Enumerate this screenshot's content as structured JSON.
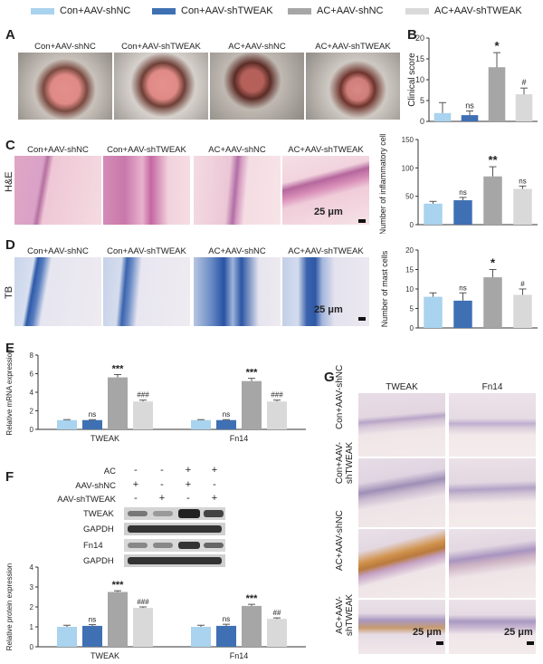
{
  "legend": {
    "items": [
      {
        "label": "Con+AAV-shNC",
        "color": "#a9d3ee"
      },
      {
        "label": "Con+AAV-shTWEAK",
        "color": "#3f70b3"
      },
      {
        "label": "AC+AAV-shNC",
        "color": "#a6a6a6"
      },
      {
        "label": "AC+AAV-shTWEAK",
        "color": "#d9d9d9"
      }
    ]
  },
  "panel_labels": {
    "A": "A",
    "B": "B",
    "C": "C",
    "D": "D",
    "E": "E",
    "F": "F",
    "G": "G"
  },
  "group_titles": [
    "Con+AAV-shNC",
    "Con+AAV-shTWEAK",
    "AC+AAV-shNC",
    "AC+AAV-shTWEAK"
  ],
  "row_labels": {
    "he": "H&E",
    "tb": "TB"
  },
  "scale": {
    "label": "25 μm"
  },
  "panel_g": {
    "col_titles": [
      "TWEAK",
      "Fn14"
    ],
    "row_labels": [
      "Con+AAV-shNC",
      "Con+AAV-shTWEAK",
      "AC+AAV-shNC",
      "AC+AAV-shTWEAK"
    ]
  },
  "western": {
    "conditions": [
      {
        "name": "AC",
        "signs": [
          "-",
          "-",
          "+",
          "+"
        ]
      },
      {
        "name": "AAV-shNC",
        "signs": [
          "+",
          "-",
          "+",
          "-"
        ]
      },
      {
        "name": "AAV-shTWEAK",
        "signs": [
          "-",
          "+",
          "-",
          "+"
        ]
      }
    ],
    "bands": [
      "TWEAK",
      "GAPDH",
      "Fn14",
      "GAPDH"
    ]
  },
  "chart_data": [
    {
      "panel": "B",
      "type": "bar",
      "categories": [
        "Con+AAV-shNC",
        "Con+AAV-shTWEAK",
        "AC+AAV-shNC",
        "AC+AAV-shTWEAK"
      ],
      "values": [
        2,
        1.5,
        13,
        6.5
      ],
      "errors": [
        2.5,
        1,
        3.5,
        1.5
      ],
      "annotations": [
        "",
        "ns",
        "*",
        "#"
      ],
      "ylabel": "Clinical score",
      "ylim": [
        0,
        20
      ],
      "yticks": [
        0,
        5,
        10,
        15,
        20
      ]
    },
    {
      "panel": "C",
      "type": "bar",
      "categories": [
        "Con+AAV-shNC",
        "Con+AAV-shTWEAK",
        "AC+AAV-shNC",
        "AC+AAV-shTWEAK"
      ],
      "values": [
        37,
        43,
        85,
        63
      ],
      "errors": [
        4,
        5,
        17,
        5
      ],
      "annotations": [
        "",
        "ns",
        "**",
        "ns"
      ],
      "ylabel": "Number of inflammatory cells",
      "ylim": [
        0,
        150
      ],
      "yticks": [
        0,
        50,
        100,
        150
      ]
    },
    {
      "panel": "D",
      "type": "bar",
      "categories": [
        "Con+AAV-shNC",
        "Con+AAV-shTWEAK",
        "AC+AAV-shNC",
        "AC+AAV-shTWEAK"
      ],
      "values": [
        8,
        7,
        13,
        8.5
      ],
      "errors": [
        1,
        2,
        2,
        1.5
      ],
      "annotations": [
        "",
        "ns",
        "*",
        "#"
      ],
      "ylabel": "Number of mast cells",
      "ylim": [
        0,
        20
      ],
      "yticks": [
        0,
        5,
        10,
        15,
        20
      ]
    },
    {
      "panel": "E",
      "type": "bar",
      "categories": [
        "TWEAK",
        "Fn14"
      ],
      "series": [
        {
          "name": "Con+AAV-shNC",
          "values": [
            1,
            1
          ],
          "errors": [
            0.05,
            0.05
          ],
          "annotations": [
            "",
            ""
          ]
        },
        {
          "name": "Con+AAV-shTWEAK",
          "values": [
            1,
            1
          ],
          "errors": [
            0.05,
            0.05
          ],
          "annotations": [
            "ns",
            "ns"
          ]
        },
        {
          "name": "AC+AAV-shNC",
          "values": [
            5.6,
            5.2
          ],
          "errors": [
            0.3,
            0.3
          ],
          "annotations": [
            "***",
            "***"
          ]
        },
        {
          "name": "AC+AAV-shTWEAK",
          "values": [
            3,
            3
          ],
          "errors": [
            0.15,
            0.15
          ],
          "annotations": [
            "###",
            "###"
          ]
        }
      ],
      "ylabel": "Relative mRNA expression",
      "ylim": [
        0,
        8
      ],
      "yticks": [
        0,
        2,
        4,
        6,
        8
      ]
    },
    {
      "panel": "F",
      "type": "bar",
      "categories": [
        "TWEAK",
        "Fn14"
      ],
      "series": [
        {
          "name": "Con+AAV-shNC",
          "values": [
            1,
            1
          ],
          "errors": [
            0.08,
            0.08
          ],
          "annotations": [
            "",
            ""
          ]
        },
        {
          "name": "Con+AAV-shTWEAK",
          "values": [
            1.05,
            1.05
          ],
          "errors": [
            0.06,
            0.08
          ],
          "annotations": [
            "ns",
            "ns"
          ]
        },
        {
          "name": "AC+AAV-shNC",
          "values": [
            2.75,
            2.05
          ],
          "errors": [
            0.06,
            0.08
          ],
          "annotations": [
            "***",
            "***"
          ]
        },
        {
          "name": "AC+AAV-shTWEAK",
          "values": [
            1.95,
            1.4
          ],
          "errors": [
            0.05,
            0.05
          ],
          "annotations": [
            "###",
            "##"
          ]
        }
      ],
      "ylabel": "Relative protein expression",
      "ylim": [
        0,
        4
      ],
      "yticks": [
        0,
        1,
        2,
        3,
        4
      ]
    }
  ]
}
